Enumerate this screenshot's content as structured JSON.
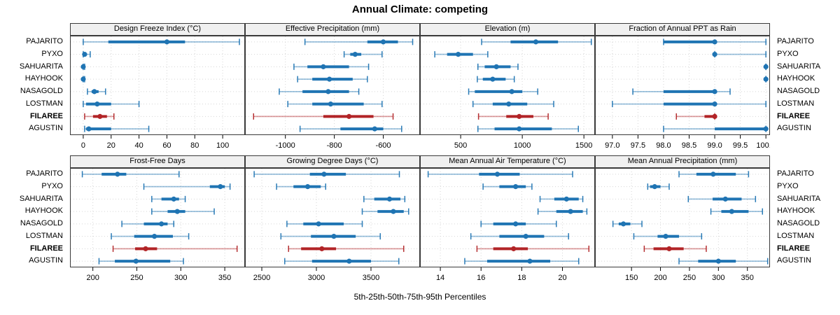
{
  "title": "Annual Climate: competing",
  "caption": "5th-25th-50th-75th-95th Percentiles",
  "sites": [
    "PAJARITO",
    "PYXO",
    "SAHUARITA",
    "HAYHOOK",
    "NASAGOLD",
    "LOSTMAN",
    "FILAREE",
    "AGUSTIN"
  ],
  "highlight_site": "FILAREE",
  "percentile_labels": [
    "5th",
    "25th",
    "50th",
    "75th",
    "95th"
  ],
  "colors": {
    "normal": "#1f74b3",
    "highlight": "#b22427",
    "grid": "#d6d6d6",
    "strip_bg": "#f0f0f0",
    "border": "#3a3a3a"
  },
  "chart_data": {
    "type": "dotplot-percentiles",
    "layout": {
      "rows": 2,
      "cols": 4,
      "legend": "none",
      "grid": "dotted"
    },
    "note": "Each row per site shows 5th-25th-50th-75th-95th percentile whisker/box/dot",
    "panels": [
      {
        "title": "Design Freeze Index (°C)",
        "xlim": [
          -9.5,
          116
        ],
        "ticks": [
          0,
          20,
          40,
          60,
          80,
          100
        ],
        "tick_labels": [
          "0",
          "20",
          "40",
          "60",
          "80",
          "100"
        ],
        "values": [
          [
            0,
            18,
            60,
            73,
            112
          ],
          [
            0,
            0,
            1,
            2,
            5
          ],
          [
            0,
            0,
            0,
            0,
            1
          ],
          [
            0,
            0,
            0,
            0,
            1
          ],
          [
            3,
            6,
            8,
            11,
            16
          ],
          [
            0,
            2,
            10,
            20,
            40
          ],
          [
            1,
            7,
            12,
            17,
            22
          ],
          [
            1,
            2,
            4,
            20,
            47
          ]
        ]
      },
      {
        "title": "Effective Precipitation (mm)",
        "xlim": [
          -1165,
          -450
        ],
        "ticks": [
          -1000,
          -800,
          -600
        ],
        "tick_labels": [
          "-1000",
          "-800",
          "-600"
        ],
        "values": [
          [
            -920,
            -665,
            -600,
            -540,
            -480
          ],
          [
            -760,
            -735,
            -715,
            -690,
            -605
          ],
          [
            -965,
            -910,
            -845,
            -740,
            -660
          ],
          [
            -950,
            -890,
            -820,
            -725,
            -665
          ],
          [
            -1025,
            -930,
            -825,
            -740,
            -700
          ],
          [
            -990,
            -890,
            -815,
            -680,
            -605
          ],
          [
            -1130,
            -845,
            -740,
            -640,
            -560
          ],
          [
            -940,
            -775,
            -635,
            -600,
            -525
          ]
        ]
      },
      {
        "title": "Elevation (m)",
        "xlim": [
          170,
          1590
        ],
        "ticks": [
          500,
          1000,
          1500
        ],
        "tick_labels": [
          "500",
          "1000",
          "1500"
        ],
        "values": [
          [
            670,
            905,
            1110,
            1290,
            1560
          ],
          [
            290,
            390,
            480,
            600,
            720
          ],
          [
            640,
            695,
            790,
            905,
            965
          ],
          [
            635,
            680,
            760,
            865,
            935
          ],
          [
            565,
            615,
            915,
            1000,
            1125
          ],
          [
            600,
            760,
            890,
            1040,
            1255
          ],
          [
            645,
            870,
            975,
            1090,
            1210
          ],
          [
            640,
            775,
            975,
            1240,
            1455
          ]
        ]
      },
      {
        "title": "Fraction of Annual PPT as Rain",
        "xlim": [
          96.66,
          100.08
        ],
        "ticks": [
          97.0,
          97.5,
          98.0,
          98.5,
          99.0,
          99.5,
          100.0
        ],
        "tick_labels": [
          "97.0",
          "97.5",
          "98.0",
          "98.5",
          "99.0",
          "99.5",
          "100.0"
        ],
        "values": [
          [
            98.0,
            98.0,
            99.0,
            99.0,
            100.0
          ],
          [
            99.0,
            99.0,
            99.0,
            99.0,
            100.0
          ],
          [
            100.0,
            100.0,
            100.0,
            100.0,
            100.0
          ],
          [
            100.0,
            100.0,
            100.0,
            100.0,
            100.0
          ],
          [
            97.4,
            98.0,
            99.0,
            99.0,
            99.3
          ],
          [
            97.0,
            98.0,
            99.0,
            99.0,
            100.0
          ],
          [
            98.25,
            98.8,
            99.0,
            99.0,
            99.0
          ],
          [
            98.0,
            99.0,
            100.0,
            100.0,
            100.0
          ]
        ]
      },
      {
        "title": "Frost-Free Days",
        "xlim": [
          174,
          373
        ],
        "ticks": [
          200,
          250,
          300,
          350
        ],
        "tick_labels": [
          "200",
          "250",
          "300",
          "350"
        ],
        "values": [
          [
            188,
            210,
            228,
            238,
            298
          ],
          [
            258,
            333,
            345,
            350,
            356
          ],
          [
            267,
            278,
            292,
            298,
            305
          ],
          [
            267,
            285,
            296,
            305,
            338
          ],
          [
            233,
            258,
            278,
            285,
            292
          ],
          [
            221,
            247,
            270,
            291,
            309
          ],
          [
            223,
            248,
            260,
            273,
            364
          ],
          [
            207,
            225,
            249,
            288,
            303
          ]
        ]
      },
      {
        "title": "Growing Degree Days (°C)",
        "xlim": [
          2346,
          3949
        ],
        "ticks": [
          2500,
          3000,
          3500
        ],
        "tick_labels": [
          "2500",
          "3000",
          "3500"
        ],
        "values": [
          [
            2430,
            2940,
            3070,
            3270,
            3760
          ],
          [
            2635,
            2790,
            2920,
            3040,
            3085
          ],
          [
            3435,
            3530,
            3670,
            3770,
            3810
          ],
          [
            3420,
            3560,
            3705,
            3800,
            3845
          ],
          [
            2730,
            2880,
            3020,
            3250,
            3420
          ],
          [
            2675,
            2950,
            3160,
            3360,
            3585
          ],
          [
            2745,
            2860,
            3050,
            3180,
            3800
          ],
          [
            2710,
            2960,
            3300,
            3500,
            3755
          ]
        ]
      },
      {
        "title": "Mean Annual Air Temperature (°C)",
        "xlim": [
          13.0,
          21.6
        ],
        "ticks": [
          14,
          16,
          18,
          20
        ],
        "tick_labels": [
          "14",
          "16",
          "18",
          "20"
        ],
        "values": [
          [
            13.4,
            15.9,
            16.8,
            17.9,
            20.5
          ],
          [
            16.1,
            16.9,
            17.7,
            18.2,
            18.5
          ],
          [
            18.9,
            19.6,
            20.2,
            20.8,
            21.0
          ],
          [
            18.8,
            19.7,
            20.4,
            21.0,
            21.2
          ],
          [
            16.0,
            16.6,
            17.7,
            18.2,
            19.7
          ],
          [
            15.5,
            16.9,
            18.2,
            19.1,
            20.3
          ],
          [
            15.8,
            16.6,
            17.6,
            18.3,
            21.3
          ],
          [
            15.2,
            16.3,
            18.4,
            19.4,
            20.8
          ]
        ]
      },
      {
        "title": "Mean Annual Precipitation (mm)",
        "xlim": [
          87,
          389
        ],
        "ticks": [
          150,
          200,
          250,
          300,
          350
        ],
        "tick_labels": [
          "150",
          "200",
          "250",
          "300",
          "350"
        ],
        "values": [
          [
            232,
            262,
            291,
            330,
            352
          ],
          [
            178,
            182,
            190,
            200,
            215
          ],
          [
            248,
            290,
            312,
            340,
            364
          ],
          [
            287,
            305,
            323,
            352,
            376
          ],
          [
            118,
            128,
            136,
            148,
            168
          ],
          [
            154,
            195,
            209,
            232,
            271
          ],
          [
            172,
            188,
            215,
            240,
            279
          ],
          [
            232,
            265,
            300,
            330,
            385
          ]
        ]
      }
    ]
  }
}
